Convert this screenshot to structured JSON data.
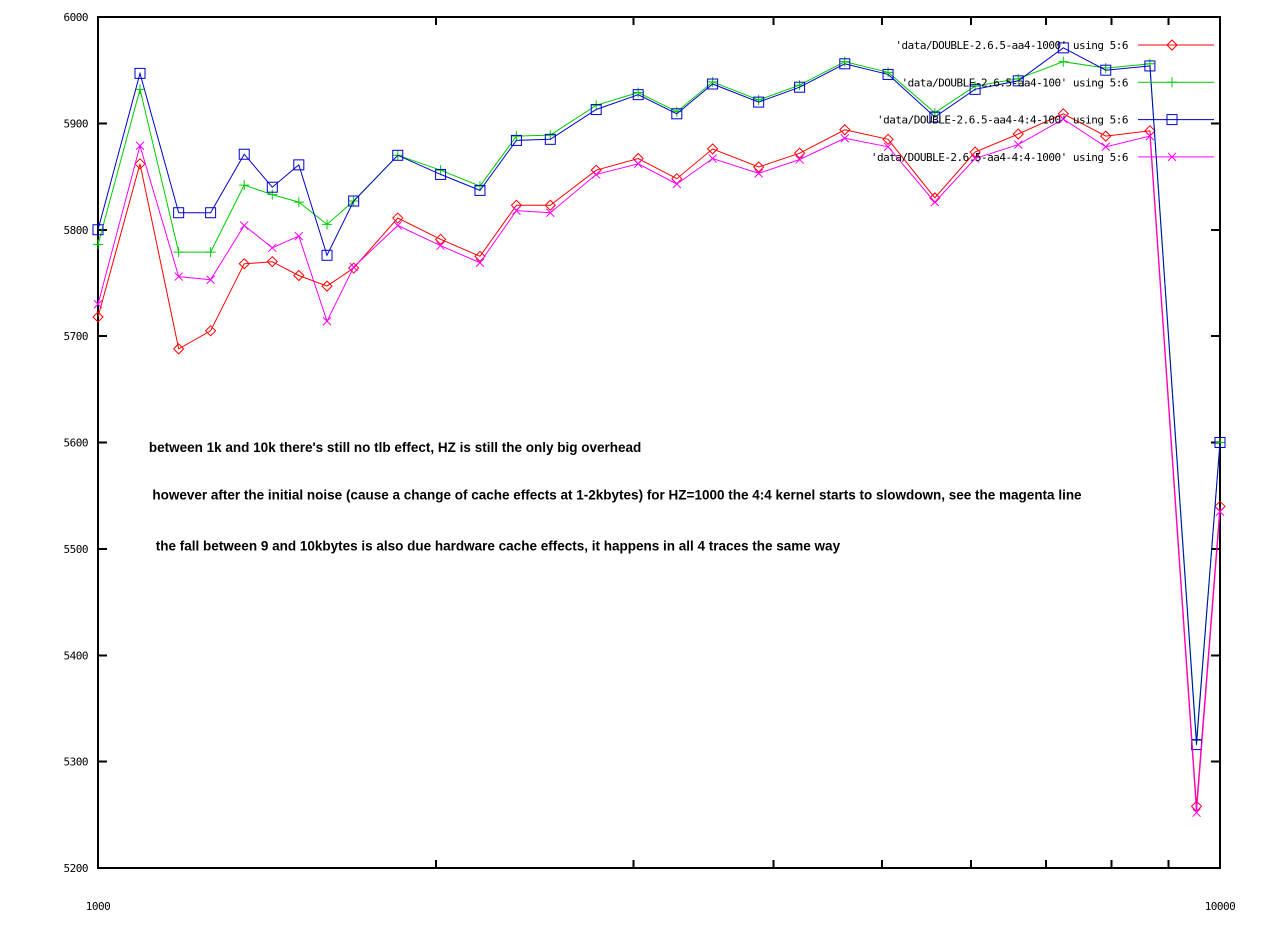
{
  "chart_data": {
    "type": "line",
    "title": "",
    "xlabel": "",
    "ylabel": "",
    "grid": false,
    "legend_position": "top-right",
    "x_axis": {
      "scale": "log",
      "min": 1000,
      "max": 10000,
      "labeled_ticks": [
        1000,
        10000
      ],
      "minor_ticks": [
        2000,
        3000,
        4000,
        5000,
        6000,
        7000,
        8000,
        9000
      ]
    },
    "y_axis": {
      "scale": "linear",
      "min": 5200,
      "max": 6000,
      "ticks": [
        5200,
        5300,
        5400,
        5500,
        5600,
        5700,
        5800,
        5900,
        6000
      ]
    },
    "x": [
      1000,
      1090,
      1180,
      1260,
      1350,
      1430,
      1510,
      1600,
      1690,
      1850,
      2020,
      2190,
      2360,
      2530,
      2780,
      3030,
      3280,
      3530,
      3880,
      4220,
      4630,
      5060,
      5570,
      6050,
      6610,
      7250,
      7910,
      8660,
      9530,
      10000
    ],
    "series": [
      {
        "name": "'data/DOUBLE-2.6.5-aa4-1000' using 5:6",
        "color": "#ff0000",
        "marker": "diamond",
        "values": [
          5718,
          5862,
          5688,
          5705,
          5768,
          5770,
          5757,
          5747,
          5764,
          5811,
          5791,
          5775,
          5823,
          5823,
          5856,
          5867,
          5848,
          5876,
          5859,
          5872,
          5894,
          5885,
          5830,
          5873,
          5890,
          5909,
          5888,
          5893,
          5258,
          5540
        ]
      },
      {
        "name": "'data/DOUBLE-2.6.5-aa4-100' using 5:6",
        "color": "#00cc00",
        "marker": "plus",
        "values": [
          5786,
          5932,
          5779,
          5779,
          5842,
          5833,
          5826,
          5805,
          5827,
          5870,
          5856,
          5841,
          5888,
          5889,
          5917,
          5929,
          5911,
          5939,
          5922,
          5936,
          5958,
          5948,
          5910,
          5935,
          5942,
          5958,
          5952,
          5956,
          5320,
          5600
        ]
      },
      {
        "name": "'data/DOUBLE-2.6.5-aa4-4:4-100' using 5:6",
        "color": "#0000cc",
        "marker": "square",
        "values": [
          5800,
          5947,
          5816,
          5816,
          5871,
          5840,
          5861,
          5776,
          5827,
          5870,
          5852,
          5837,
          5884,
          5885,
          5913,
          5927,
          5909,
          5937,
          5920,
          5934,
          5956,
          5946,
          5906,
          5932,
          5940,
          5971,
          5950,
          5954,
          5316,
          5600
        ]
      },
      {
        "name": "'data/DOUBLE-2.6.5-aa4-4:4-1000' using 5:6",
        "color": "#ff00ff",
        "marker": "x",
        "values": [
          5730,
          5879,
          5756,
          5753,
          5804,
          5783,
          5794,
          5714,
          5765,
          5804,
          5785,
          5769,
          5818,
          5816,
          5852,
          5862,
          5843,
          5867,
          5853,
          5866,
          5886,
          5878,
          5826,
          5867,
          5880,
          5904,
          5878,
          5888,
          5252,
          5535
        ]
      }
    ],
    "annotations": [
      {
        "text": "between 1k and 10k there's still no tlb effect, HZ is still the only big overhead",
        "x": 1110,
        "y": 5596
      },
      {
        "text": "however after the initial noise (cause a change of cache effects at 1-2kbytes) for HZ=1000 the 4:4 kernel starts to slowdown, see the magenta line",
        "x": 1118,
        "y": 5551
      },
      {
        "text": "the fall between 9 and 10kbytes is also due hardware cache effects, it happens in all 4 traces the same way",
        "x": 1126,
        "y": 5503
      }
    ]
  },
  "colors": {
    "background": "#ffffff",
    "axis": "#000000",
    "text": "#000000"
  }
}
